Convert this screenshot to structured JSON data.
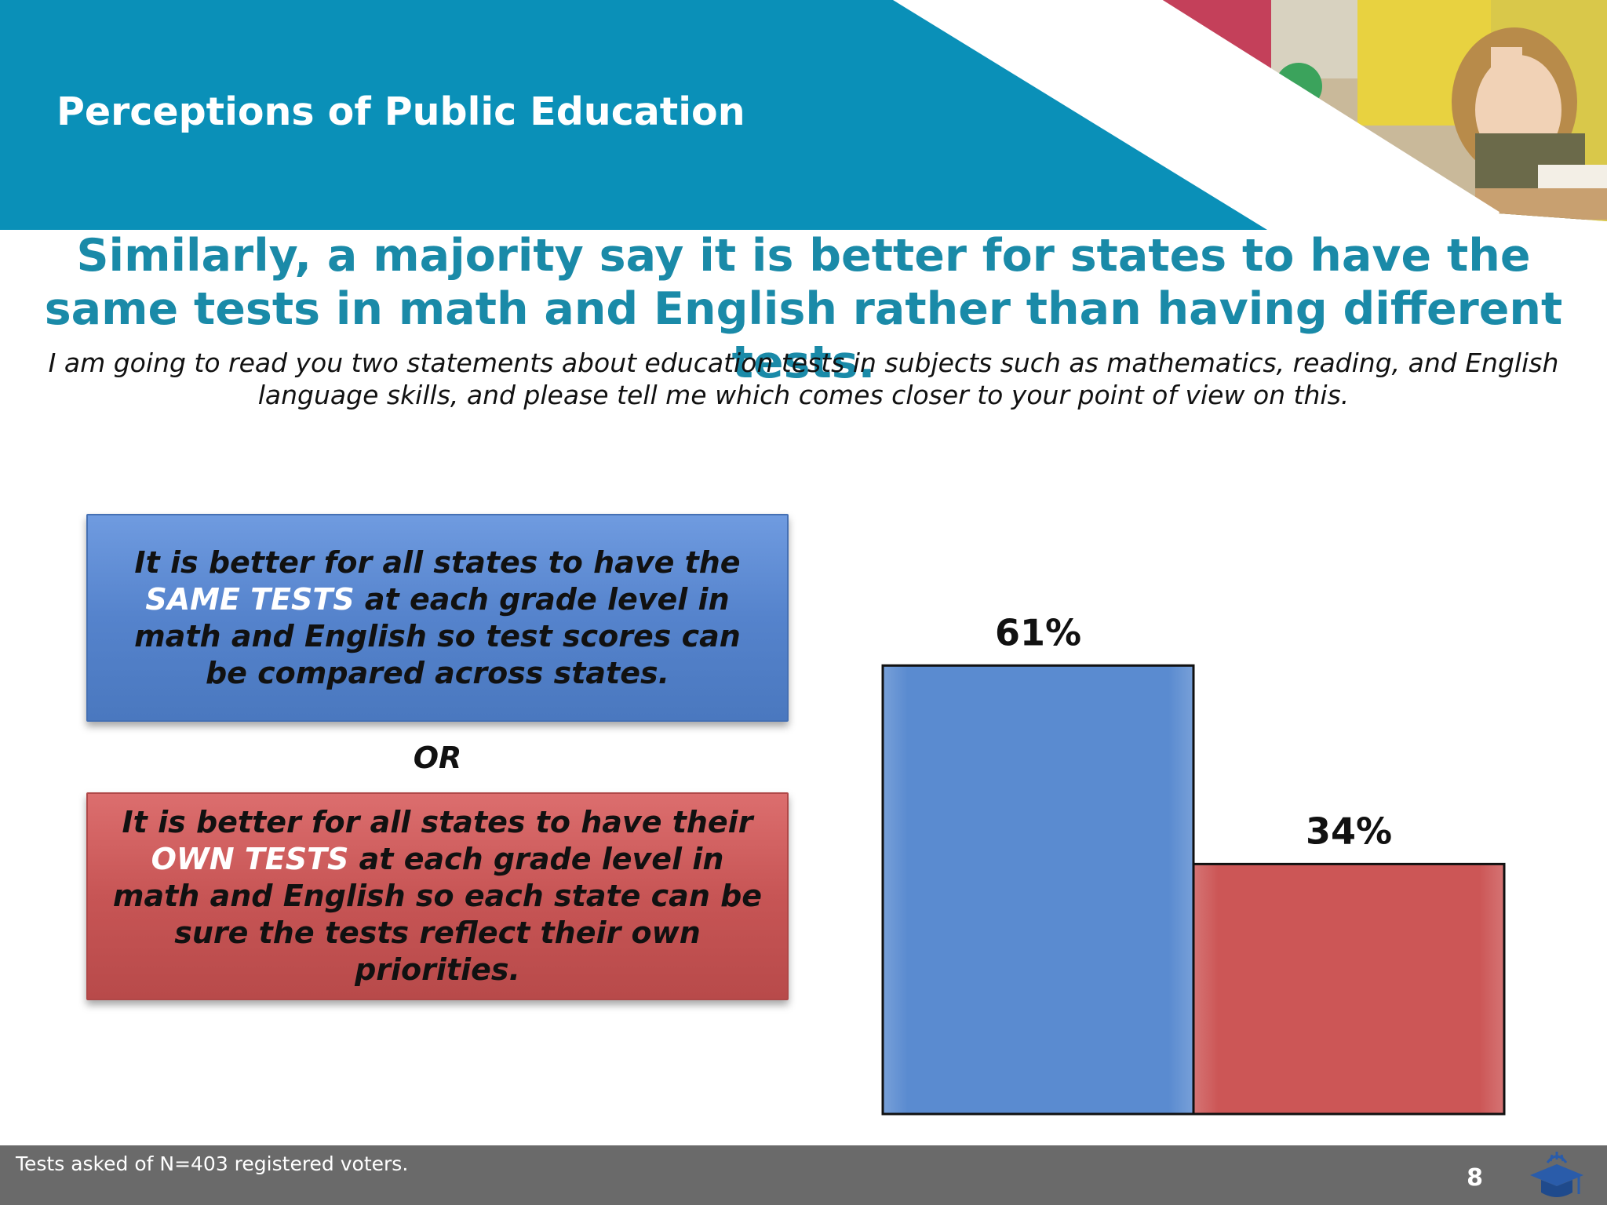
{
  "header": {
    "title": "Perceptions of Public Education",
    "band_color": "#0a90b8"
  },
  "headline": "Similarly, a majority say it is better for states to have the same tests in math and English rather than having different tests.",
  "question": "I am going to read you two statements about education tests in subjects such as mathematics, reading, and English language skills, and please tell me which comes closer to your point of view on this.",
  "statements": {
    "same": {
      "before": "It is better for all states to have the ",
      "emphasis": "SAME TESTS",
      "after": " at each grade level in math and English so test scores can be compared across states.",
      "color": "#5583cc"
    },
    "separator": "OR",
    "own": {
      "before": "It is better for all states to have their ",
      "emphasis": "OWN TESTS",
      "after": " at each grade level in math and English so each state can be sure the tests reflect their own priorities.",
      "color": "#c75555"
    }
  },
  "chart_data": {
    "type": "bar",
    "categories": [
      "Same tests",
      "Own tests"
    ],
    "values": [
      61,
      34
    ],
    "value_labels": [
      "61%",
      "34%"
    ],
    "colors": [
      "#5a8bd0",
      "#cc5656"
    ],
    "ylim": [
      0,
      70
    ],
    "grid": false,
    "legend": "none"
  },
  "footer": {
    "note": "Tests asked of N=403 registered voters.",
    "page_number": "8",
    "logo_icon": "graduation-cap-icon"
  }
}
